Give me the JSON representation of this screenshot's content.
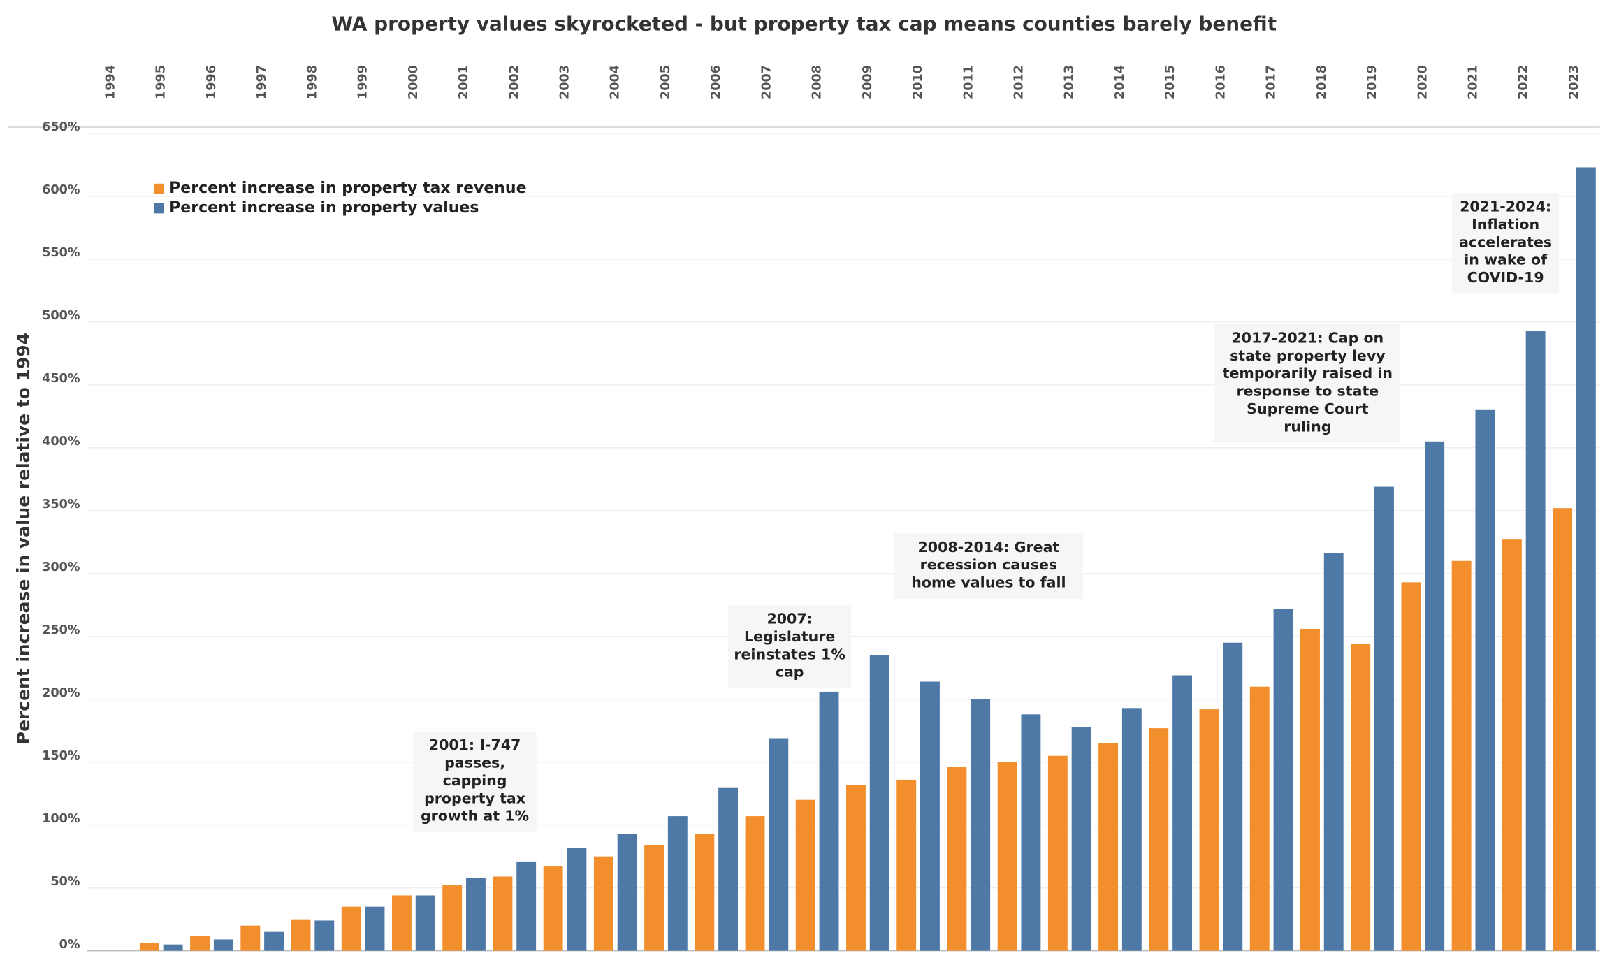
{
  "chart_data": {
    "type": "bar",
    "title": "WA property values  skyrocketed  - but property tax cap means counties barely benefit",
    "ylabel": "Percent increase in value relative to 1994",
    "categories": [
      "1994",
      "1995",
      "1996",
      "1997",
      "1998",
      "1999",
      "2000",
      "2001",
      "2002",
      "2003",
      "2004",
      "2005",
      "2006",
      "2007",
      "2008",
      "2009",
      "2010",
      "2011",
      "2012",
      "2013",
      "2014",
      "2015",
      "2016",
      "2017",
      "2018",
      "2019",
      "2020",
      "2021",
      "2022",
      "2023"
    ],
    "series": [
      {
        "name": "Percent increase in property tax revenue",
        "color": "#f28e2b",
        "values": [
          0,
          6,
          12,
          20,
          25,
          35,
          44,
          52,
          59,
          67,
          75,
          84,
          93,
          107,
          120,
          132,
          136,
          146,
          150,
          155,
          165,
          177,
          192,
          210,
          256,
          244,
          293,
          310,
          327,
          352
        ]
      },
      {
        "name": "Percent increase in property values",
        "color": "#4e79a7",
        "values": [
          0,
          5,
          9,
          15,
          24,
          35,
          44,
          58,
          71,
          82,
          93,
          107,
          130,
          169,
          206,
          235,
          214,
          200,
          188,
          178,
          193,
          219,
          245,
          272,
          316,
          369,
          405,
          430,
          493,
          623
        ]
      }
    ],
    "ylim": [
      0,
      650
    ],
    "yticks": [
      {
        "value": 0,
        "label": "0%"
      },
      {
        "value": 50,
        "label": "50%"
      },
      {
        "value": 100,
        "label": "100%"
      },
      {
        "value": 150,
        "label": "150%"
      },
      {
        "value": 200,
        "label": "200%"
      },
      {
        "value": 250,
        "label": "250%"
      },
      {
        "value": 300,
        "label": "300%"
      },
      {
        "value": 350,
        "label": "350%"
      },
      {
        "value": 400,
        "label": "400%"
      },
      {
        "value": 450,
        "label": "450%"
      },
      {
        "value": 500,
        "label": "500%"
      },
      {
        "value": 550,
        "label": "550%"
      },
      {
        "value": 600,
        "label": "600%"
      },
      {
        "value": 650,
        "label": "650%"
      }
    ],
    "grid": true,
    "legend": "top-left",
    "annotations": [
      {
        "lines": [
          "2001: I-747",
          "passes,",
          "capping",
          "property tax",
          "growth  at 1%"
        ]
      },
      {
        "lines": [
          "2007:",
          "Legislature",
          "reinstates 1%",
          "cap"
        ]
      },
      {
        "lines": [
          "2008-2014: Great",
          "recession causes",
          "home values to fall"
        ]
      },
      {
        "lines": [
          "2017-2021: Cap on",
          "state property levy",
          "temporarily raised in",
          "response to state",
          "Supreme Court",
          "ruling"
        ]
      },
      {
        "lines": [
          "2021-2024:",
          "Inflation",
          "accelerates",
          "in wake of",
          "COVID-19"
        ]
      }
    ]
  }
}
